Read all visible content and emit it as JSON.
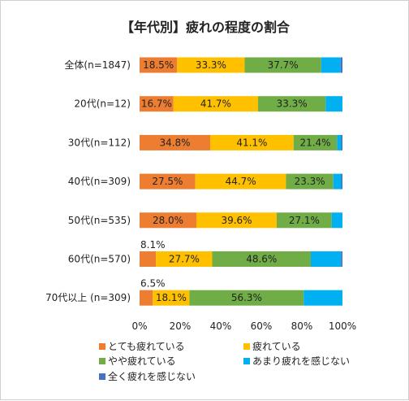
{
  "chart_data": {
    "type": "bar",
    "orientation": "horizontal",
    "stacked": true,
    "percent_stacked": true,
    "title": "【年代別】疲れの程度の割合",
    "categories": [
      "全体(n=1847)",
      "20代(n=12)",
      "30代(n=112)",
      "40代(n=309)",
      "50代(n=535)",
      "60代(n=570)",
      "70代以上 (n=309)"
    ],
    "series": [
      {
        "name": "とても疲れている",
        "color": "#ED7D31",
        "values": [
          18.5,
          16.7,
          34.8,
          27.5,
          28.0,
          8.1,
          6.5
        ],
        "labels": [
          "18.5%",
          "16.7%",
          "34.8%",
          "27.5%",
          "28.0%",
          "8.1%",
          "6.5%"
        ]
      },
      {
        "name": "疲れている",
        "color": "#FFC000",
        "values": [
          33.3,
          41.7,
          41.1,
          44.7,
          39.6,
          27.7,
          18.1
        ],
        "labels": [
          "33.3%",
          "41.7%",
          "41.1%",
          "44.7%",
          "39.6%",
          "27.7%",
          "18.1%"
        ]
      },
      {
        "name": "やや疲れている",
        "color": "#70AD47",
        "values": [
          37.7,
          33.3,
          21.4,
          23.3,
          27.1,
          48.6,
          56.3
        ],
        "labels": [
          "37.7%",
          "33.3%",
          "21.4%",
          "23.3%",
          "27.1%",
          "48.6%",
          "56.3%"
        ]
      },
      {
        "name": "あまり疲れを感じない",
        "color": "#00B0F0",
        "values": [
          9.6,
          8.3,
          2.1,
          3.9,
          5.3,
          14.9,
          19.1
        ],
        "labels": []
      },
      {
        "name": "全く疲れを感じない",
        "color": "#4472C4",
        "values": [
          0.9,
          0.0,
          0.6,
          0.6,
          0.0,
          0.7,
          0.0
        ],
        "labels": []
      }
    ],
    "xlim": [
      0,
      100
    ],
    "xticks": [
      "0%",
      "20%",
      "40%",
      "60%",
      "80%",
      "100%"
    ],
    "grid": false,
    "legend": "bottom"
  }
}
